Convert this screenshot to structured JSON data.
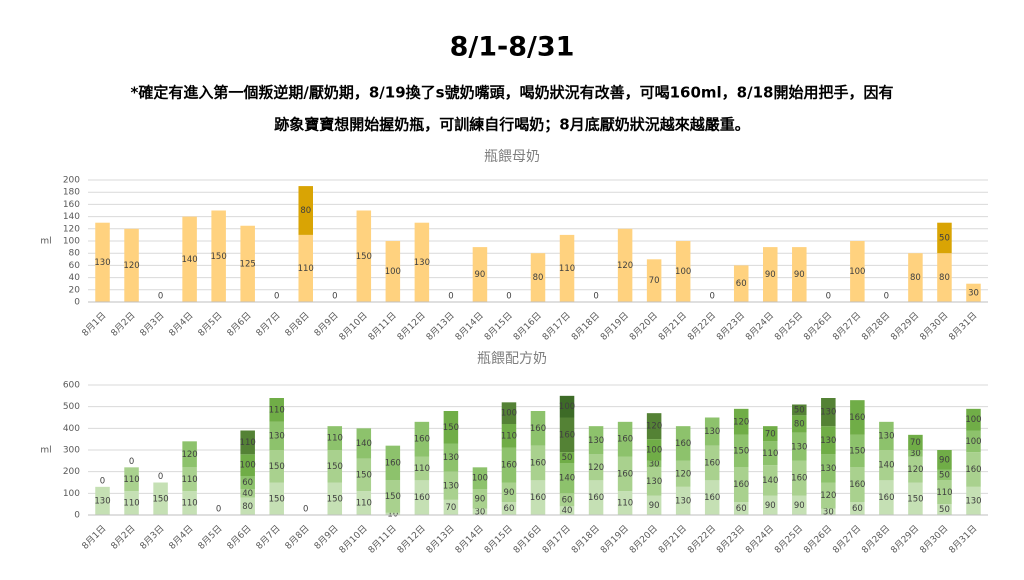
{
  "title": "8/1-8/31",
  "description": [
    "*確定有進入第一個叛逆期/厭奶期，8/19換了s號奶嘴頭，喝奶狀況有改善，可喝160ml，8/18開始用把手，因有",
    "跡象寶寶想開始握奶瓶，可訓練自行喝奶；8月底厭奶狀況越來越嚴重。"
  ],
  "chart_data": [
    {
      "type": "bar",
      "stacked": true,
      "title": "瓶餵母奶",
      "ylabel": "ml",
      "grid": true,
      "categories": [
        "8月1日",
        "8月2日",
        "8月3日",
        "8月4日",
        "8月5日",
        "8月6日",
        "8月7日",
        "8月8日",
        "8月9日",
        "8月10日",
        "8月11日",
        "8月12日",
        "8月13日",
        "8月14日",
        "8月15日",
        "8月16日",
        "8月17日",
        "8月18日",
        "8月19日",
        "8月20日",
        "8月21日",
        "8月22日",
        "8月23日",
        "8月24日",
        "8月25日",
        "8月26日",
        "8月27日",
        "8月28日",
        "8月29日",
        "8月30日",
        "8月31日"
      ],
      "ylim": [
        0,
        200
      ],
      "yticks": [
        0,
        20,
        40,
        60,
        80,
        100,
        120,
        140,
        160,
        180,
        200
      ],
      "series": [
        {
          "color": "#ffd27f",
          "values": [
            130,
            120,
            0,
            140,
            150,
            125,
            0,
            110,
            0,
            150,
            100,
            130,
            0,
            90,
            0,
            80,
            110,
            0,
            120,
            70,
            100,
            0,
            60,
            90,
            90,
            0,
            100,
            0,
            80,
            80,
            30
          ]
        },
        {
          "color": "#d9a404",
          "values": [
            null,
            null,
            null,
            null,
            null,
            null,
            null,
            80,
            null,
            null,
            null,
            null,
            null,
            null,
            null,
            null,
            null,
            null,
            null,
            null,
            null,
            null,
            null,
            null,
            null,
            null,
            null,
            null,
            null,
            50,
            null
          ]
        }
      ]
    },
    {
      "type": "bar",
      "stacked": true,
      "title": "瓶餵配方奶",
      "ylabel": "ml",
      "grid": true,
      "categories": [
        "8月1日",
        "8月2日",
        "8月3日",
        "8月4日",
        "8月5日",
        "8月6日",
        "8月7日",
        "8月8日",
        "8月9日",
        "8月10日",
        "8月11日",
        "8月12日",
        "8月13日",
        "8月14日",
        "8月15日",
        "8月16日",
        "8月17日",
        "8月18日",
        "8月19日",
        "8月20日",
        "8月21日",
        "8月22日",
        "8月23日",
        "8月24日",
        "8月25日",
        "8月26日",
        "8月27日",
        "8月28日",
        "8月29日",
        "8月30日",
        "8月31日"
      ],
      "ylim": [
        0,
        600
      ],
      "yticks": [
        0,
        100,
        200,
        300,
        400,
        500,
        600
      ],
      "series": [
        {
          "color": "#c5e0b4",
          "values": [
            130,
            110,
            150,
            110,
            0,
            80,
            150,
            0,
            150,
            110,
            10,
            160,
            70,
            30,
            60,
            160,
            40,
            160,
            110,
            90,
            130,
            160,
            60,
            90,
            90,
            30,
            60,
            160,
            150,
            50,
            130
          ]
        },
        {
          "color": "#a9d18e",
          "values": [
            0,
            110,
            0,
            110,
            null,
            40,
            150,
            null,
            150,
            150,
            150,
            110,
            130,
            90,
            90,
            160,
            60,
            120,
            160,
            130,
            120,
            160,
            160,
            140,
            160,
            120,
            160,
            140,
            120,
            110,
            160
          ]
        },
        {
          "color": "#8dc26c",
          "values": [
            null,
            0,
            null,
            120,
            null,
            60,
            130,
            null,
            110,
            140,
            160,
            160,
            130,
            100,
            160,
            160,
            140,
            130,
            160,
            30,
            160,
            130,
            150,
            110,
            130,
            130,
            150,
            130,
            30,
            50,
            100
          ]
        },
        {
          "color": "#70ad47",
          "values": [
            null,
            null,
            null,
            null,
            null,
            100,
            110,
            null,
            null,
            null,
            null,
            null,
            150,
            null,
            110,
            null,
            50,
            null,
            null,
            100,
            null,
            null,
            120,
            70,
            80,
            130,
            160,
            null,
            70,
            90,
            100
          ]
        },
        {
          "color": "#548235",
          "values": [
            null,
            null,
            null,
            null,
            null,
            110,
            null,
            null,
            null,
            null,
            null,
            null,
            null,
            null,
            100,
            null,
            160,
            null,
            null,
            120,
            null,
            null,
            null,
            null,
            50,
            130,
            null,
            null,
            null,
            null,
            null
          ]
        },
        {
          "color": "#3d6b27",
          "values": [
            null,
            null,
            null,
            null,
            null,
            null,
            null,
            null,
            null,
            null,
            null,
            null,
            null,
            null,
            null,
            null,
            100,
            null,
            null,
            null,
            null,
            null,
            null,
            null,
            null,
            null,
            null,
            null,
            null,
            null,
            null
          ]
        }
      ]
    }
  ]
}
